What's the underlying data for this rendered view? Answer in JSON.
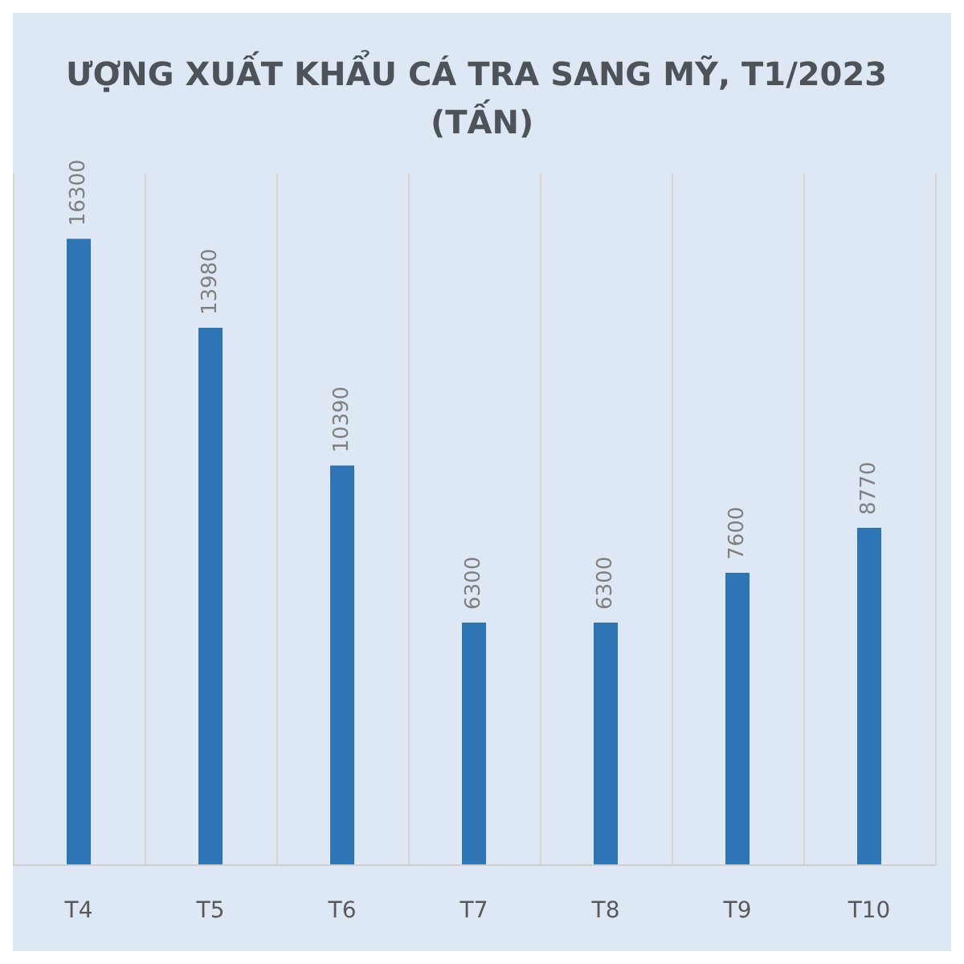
{
  "chart_data": {
    "type": "bar",
    "title": "ƯỢNG XUẤT KHẨU CÁ TRA SANG MỸ, T1/2023 (TẤN)",
    "categories": [
      "T4",
      "T5",
      "T6",
      "T7",
      "T8",
      "T9",
      "T10"
    ],
    "values": [
      16300,
      13980,
      10390,
      6300,
      6300,
      7600,
      8770
    ],
    "color": "#2e75b6",
    "data_labels": true,
    "grid": "x",
    "tick_labels": "x"
  }
}
